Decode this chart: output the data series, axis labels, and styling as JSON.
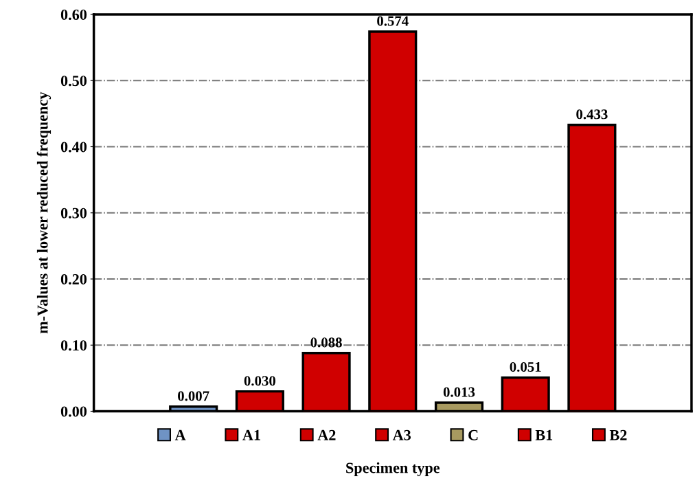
{
  "chart_data": {
    "type": "bar",
    "xlabel": "Specimen type",
    "ylabel": "m-Values at lower reduced frequency",
    "categories": [
      null,
      null,
      null,
      null,
      null,
      null,
      null,
      null,
      null
    ],
    "series": [
      {
        "name": "A",
        "color": "#6f93c4",
        "values": [
          null,
          0.007,
          null,
          null,
          null,
          null,
          null,
          null,
          null
        ],
        "value_labels": [
          null,
          "0.007",
          null,
          null,
          null,
          null,
          null,
          null,
          null
        ]
      },
      {
        "name": "A1",
        "color": "#d00000",
        "values": [
          null,
          null,
          0.03,
          null,
          null,
          null,
          null,
          null,
          null
        ],
        "value_labels": [
          null,
          null,
          "0.030",
          null,
          null,
          null,
          null,
          null,
          null
        ]
      },
      {
        "name": "A2",
        "color": "#d00000",
        "values": [
          null,
          null,
          null,
          0.088,
          null,
          null,
          null,
          null,
          null
        ],
        "value_labels": [
          null,
          null,
          null,
          "0.088",
          null,
          null,
          null,
          null,
          null
        ]
      },
      {
        "name": "A3",
        "color": "#d00000",
        "values": [
          null,
          null,
          null,
          null,
          0.574,
          null,
          null,
          null,
          null
        ],
        "value_labels": [
          null,
          null,
          null,
          null,
          "0.574",
          null,
          null,
          null,
          null
        ]
      },
      {
        "name": "C",
        "color": "#a89a60",
        "values": [
          null,
          null,
          null,
          null,
          null,
          0.013,
          null,
          null,
          null
        ],
        "value_labels": [
          null,
          null,
          null,
          null,
          null,
          "0.013",
          null,
          null,
          null
        ]
      },
      {
        "name": "B1",
        "color": "#d00000",
        "values": [
          null,
          null,
          null,
          null,
          null,
          null,
          0.051,
          null,
          null
        ],
        "value_labels": [
          null,
          null,
          null,
          null,
          null,
          null,
          "0.051",
          null,
          null
        ]
      },
      {
        "name": "B2",
        "color": "#d00000",
        "values": [
          null,
          null,
          null,
          null,
          null,
          null,
          null,
          0.433,
          null
        ],
        "value_labels": [
          null,
          null,
          null,
          null,
          null,
          null,
          null,
          "0.433",
          null
        ]
      }
    ],
    "ylim": [
      0,
      0.6
    ],
    "yticks": [
      {
        "value": 0,
        "label": "0.00"
      },
      {
        "value": 0.1,
        "label": "0.10"
      },
      {
        "value": 0.2,
        "label": "0.20"
      },
      {
        "value": 0.3,
        "label": "0.30"
      },
      {
        "value": 0.4,
        "label": "0.40"
      },
      {
        "value": 0.5,
        "label": "0.50"
      },
      {
        "value": 0.6,
        "label": "0.60"
      }
    ],
    "grid": "y",
    "legend": "bottom"
  }
}
